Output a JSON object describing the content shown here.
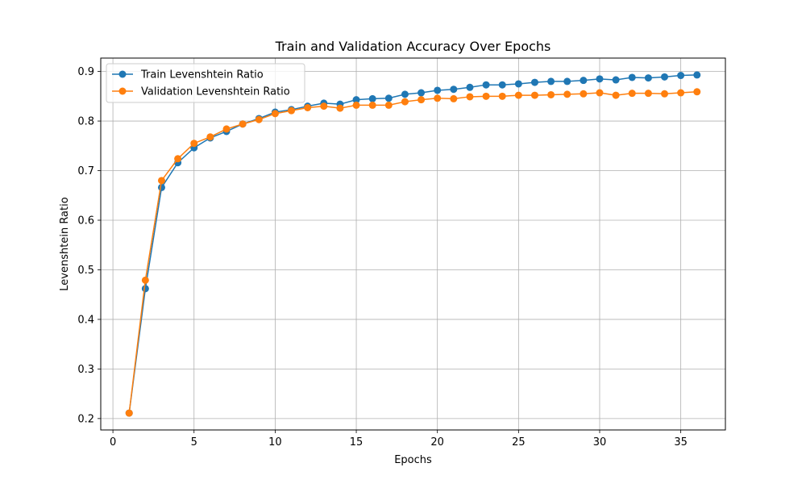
{
  "chart_data": {
    "type": "line",
    "title": "Train and Validation Accuracy Over Epochs",
    "xlabel": "Epochs",
    "ylabel": "Levenshtein Ratio",
    "xlim": [
      -0.75,
      37.75
    ],
    "ylim": [
      0.177,
      0.927
    ],
    "xticks": [
      0,
      5,
      10,
      15,
      20,
      25,
      30,
      35
    ],
    "yticks": [
      0.2,
      0.3,
      0.4,
      0.5,
      0.6,
      0.7,
      0.8,
      0.9
    ],
    "grid": true,
    "legend_position": "top-left",
    "x": [
      1,
      2,
      3,
      4,
      5,
      6,
      7,
      8,
      9,
      10,
      11,
      12,
      13,
      14,
      15,
      16,
      17,
      18,
      19,
      20,
      21,
      22,
      23,
      24,
      25,
      26,
      27,
      28,
      29,
      30,
      31,
      32,
      33,
      34,
      35,
      36
    ],
    "series": [
      {
        "name": "Train Levenshtein Ratio",
        "color": "#1f77b4",
        "values": [
          0.211,
          0.462,
          0.666,
          0.716,
          0.746,
          0.766,
          0.779,
          0.794,
          0.805,
          0.818,
          0.823,
          0.83,
          0.836,
          0.834,
          0.843,
          0.845,
          0.846,
          0.854,
          0.857,
          0.862,
          0.864,
          0.868,
          0.873,
          0.873,
          0.875,
          0.878,
          0.88,
          0.88,
          0.882,
          0.885,
          0.883,
          0.888,
          0.887,
          0.889,
          0.892,
          0.893
        ]
      },
      {
        "name": "Validation Levenshtein Ratio",
        "color": "#ff7f0e",
        "values": [
          0.211,
          0.479,
          0.68,
          0.724,
          0.755,
          0.768,
          0.784,
          0.794,
          0.803,
          0.815,
          0.821,
          0.827,
          0.83,
          0.826,
          0.832,
          0.832,
          0.832,
          0.839,
          0.843,
          0.846,
          0.845,
          0.849,
          0.85,
          0.85,
          0.852,
          0.852,
          0.853,
          0.854,
          0.855,
          0.857,
          0.852,
          0.856,
          0.856,
          0.855,
          0.857,
          0.859
        ]
      }
    ]
  }
}
